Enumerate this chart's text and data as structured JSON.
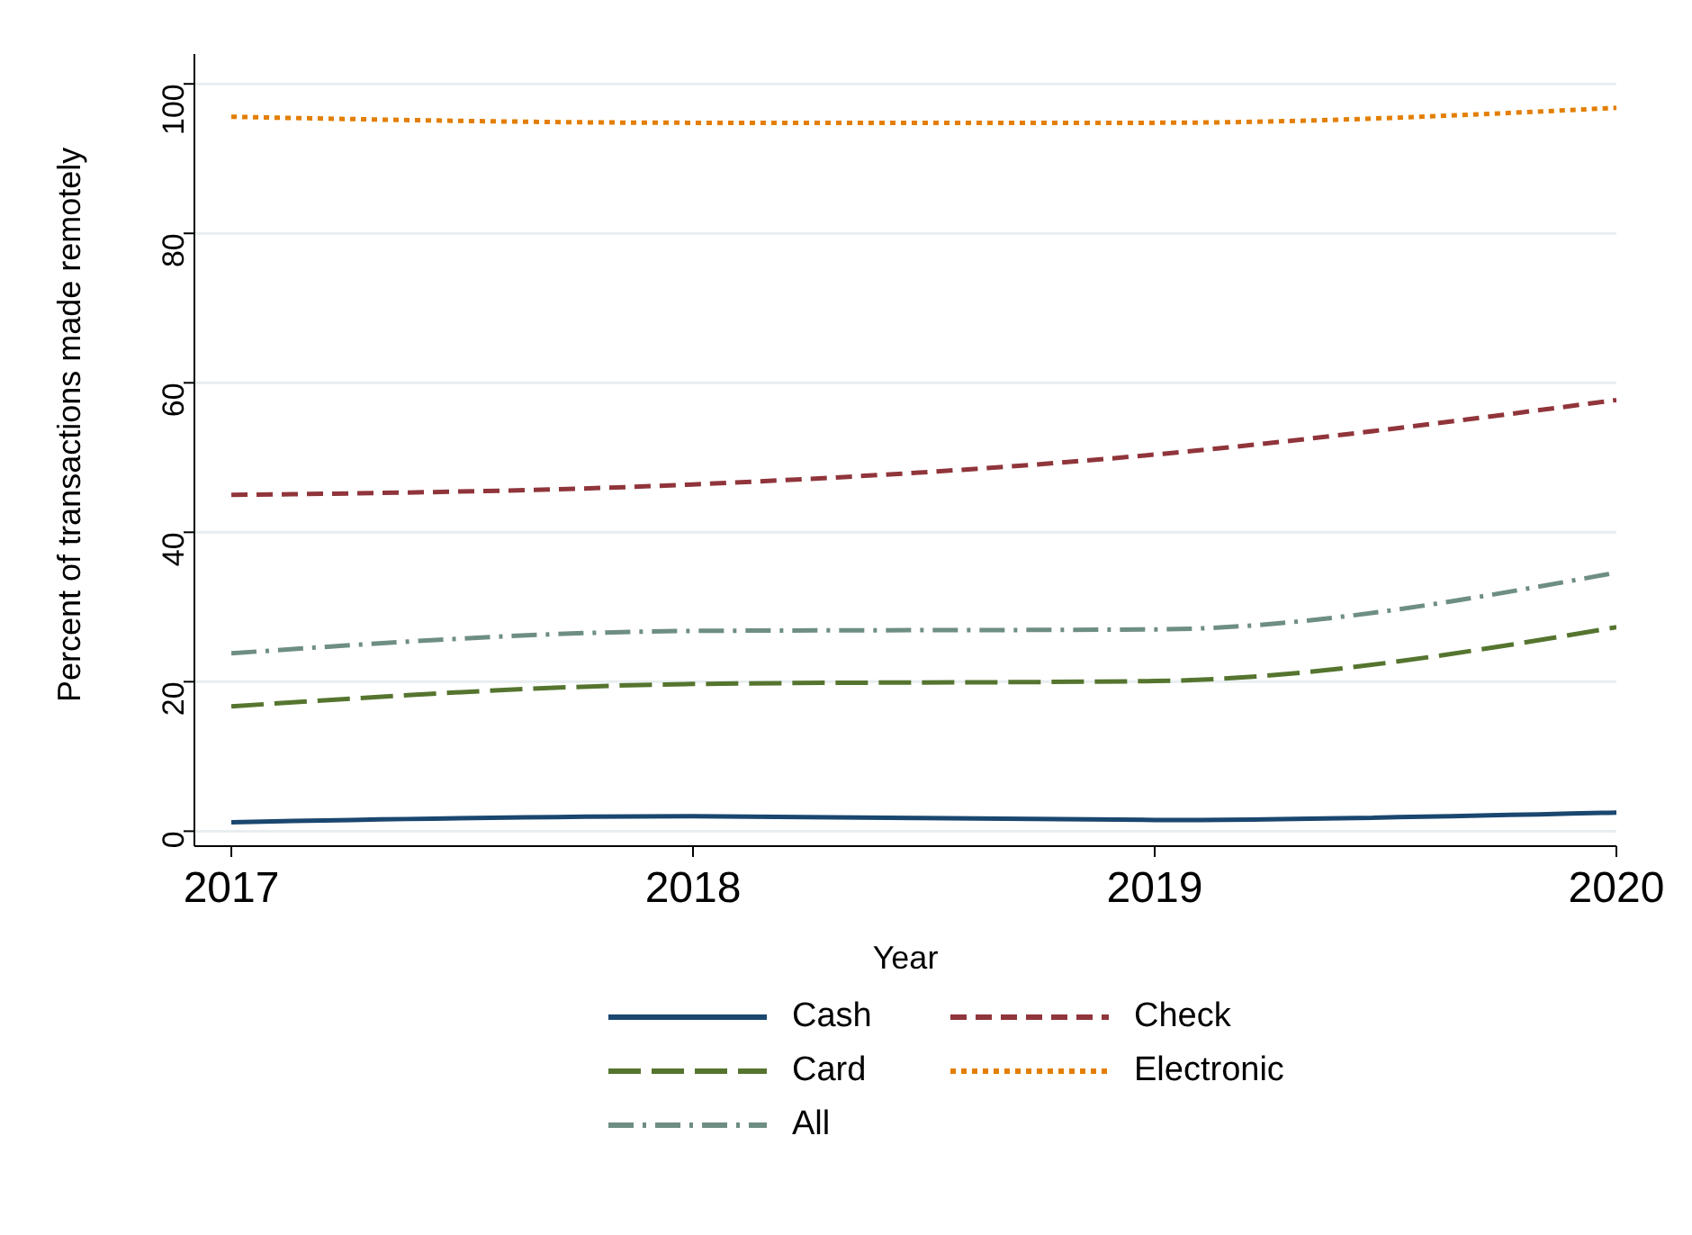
{
  "chart_data": {
    "type": "line",
    "xlabel": "Year",
    "ylabel": "Percent of transactions made remotely",
    "x": [
      2017,
      2018,
      2019,
      2020
    ],
    "series": [
      {
        "name": "Cash",
        "color": "#1a476f",
        "line_style": "solid",
        "values": [
          1.2,
          2.0,
          1.5,
          2.5
        ]
      },
      {
        "name": "Check",
        "color": "#90353b",
        "line_style": "dashed",
        "values": [
          45.0,
          46.4,
          50.4,
          57.7
        ]
      },
      {
        "name": "Card",
        "color": "#55752f",
        "line_style": "longdash",
        "values": [
          16.7,
          19.7,
          20.1,
          27.3
        ]
      },
      {
        "name": "Electronic",
        "color": "#e37e00",
        "line_style": "dotted",
        "values": [
          95.6,
          94.8,
          94.8,
          96.8
        ]
      },
      {
        "name": "All",
        "color": "#6e8e84",
        "line_style": "dashdot",
        "values": [
          23.8,
          26.8,
          27.0,
          34.6
        ]
      }
    ],
    "xlim": [
      2016.92,
      2020
    ],
    "xticks": [
      2017,
      2018,
      2019,
      2020
    ],
    "ylim": [
      -2,
      104
    ],
    "yticks": [
      0,
      20,
      40,
      60,
      80,
      100
    ],
    "grid": "y",
    "legend": "bottom",
    "marker": "none"
  }
}
